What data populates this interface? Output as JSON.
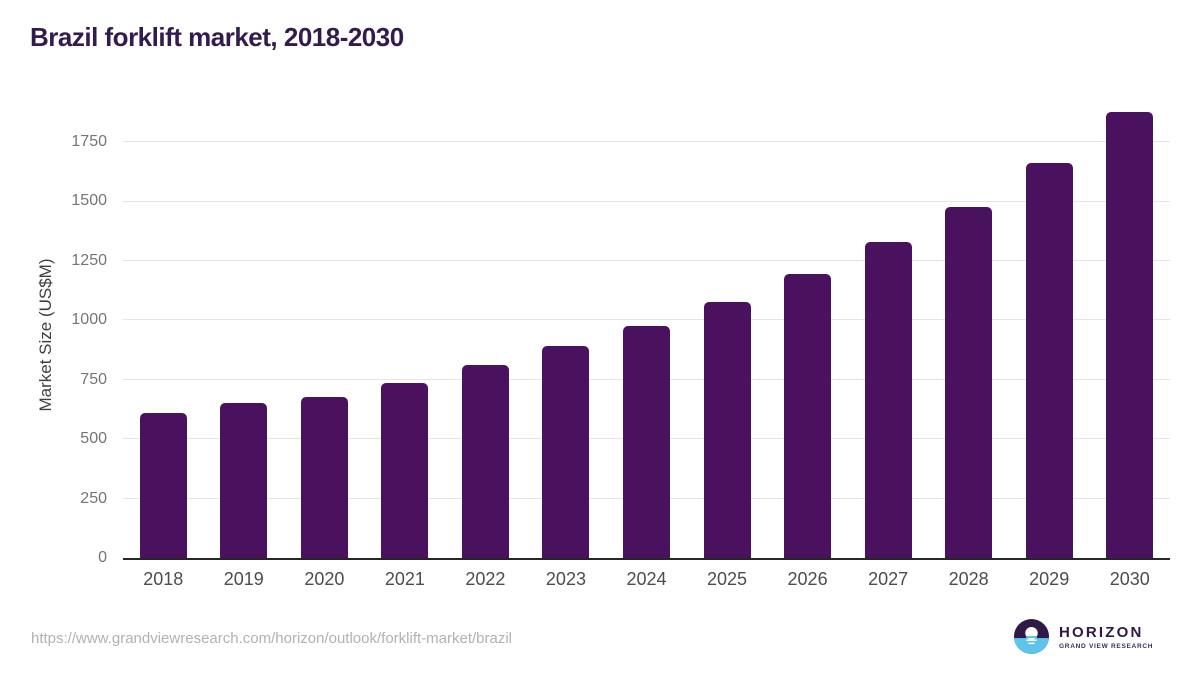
{
  "page": {
    "title": "Brazil forklift market, 2018-2030"
  },
  "chart_data": {
    "type": "bar",
    "title": "Brazil forklift market, 2018-2030",
    "categories": [
      "2018",
      "2019",
      "2020",
      "2021",
      "2022",
      "2023",
      "2024",
      "2025",
      "2026",
      "2027",
      "2028",
      "2029",
      "2030"
    ],
    "values": [
      611,
      651,
      676,
      738,
      813,
      890,
      976,
      1079,
      1197,
      1328,
      1478,
      1660,
      1877
    ],
    "xlabel": "",
    "ylabel": "Market Size (US$M)",
    "ylim": [
      0,
      1927
    ],
    "yticks": [
      0,
      250,
      500,
      750,
      1000,
      1250,
      1500,
      1750
    ],
    "grid": true,
    "legend": false,
    "bar_color": "#4a115e"
  },
  "footer": {
    "source_url": "https://www.grandviewresearch.com/horizon/outlook/forklift-market/brazil",
    "logo": {
      "name": "HORIZON",
      "subtitle": "GRAND VIEW RESEARCH",
      "icon": "horizon-sun-logo-icon",
      "color_dark": "#2e1a47",
      "color_blue": "#5fc4ea"
    }
  },
  "colors": {
    "title_text": "#321b4d",
    "bar": "#4a115e",
    "y_tick_text": "#757575",
    "x_tick_text": "#4d4d4d",
    "gridline": "#e5e5e5",
    "baseline": "#262626",
    "url_text": "#b1b1b6"
  }
}
